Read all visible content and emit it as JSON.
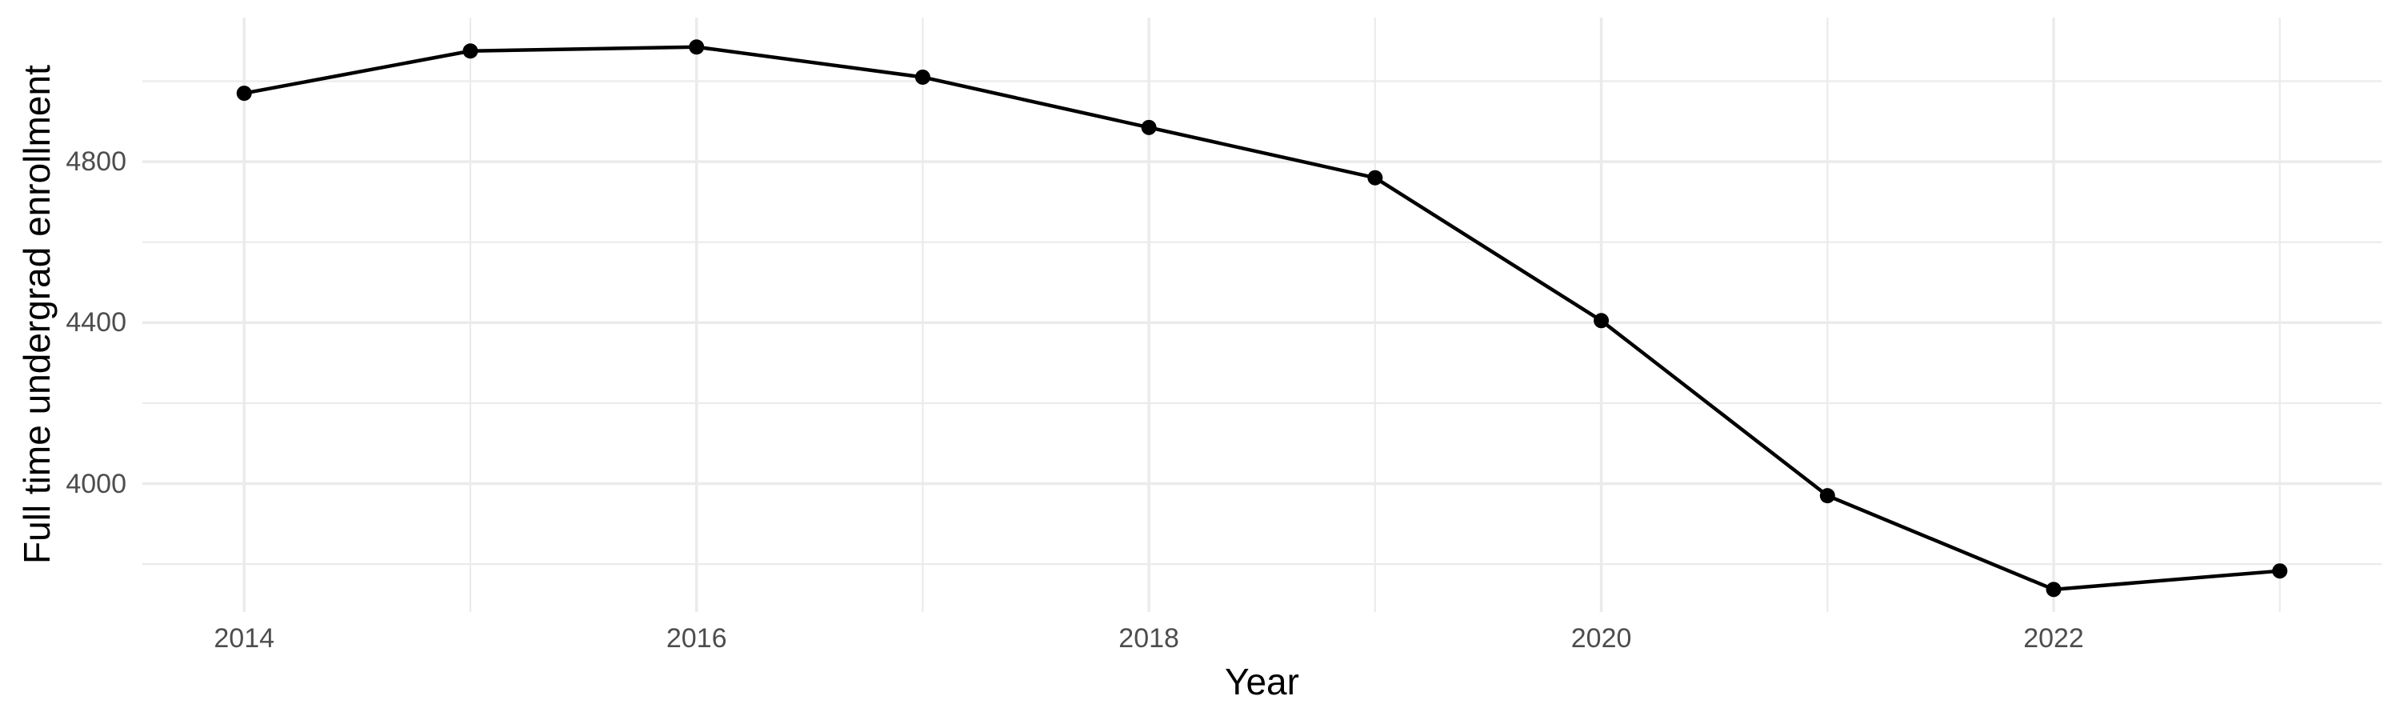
{
  "chart_data": {
    "type": "line",
    "title": "",
    "xlabel": "Year",
    "ylabel": "Full time undergrad enrollment",
    "x": [
      2014,
      2015,
      2016,
      2017,
      2018,
      2019,
      2020,
      2021,
      2022,
      2023
    ],
    "values": [
      4970,
      5075,
      5085,
      5010,
      4885,
      4760,
      4405,
      3970,
      3737,
      3783
    ],
    "series_name": "Full time undergrad enrollment",
    "xlim": [
      2013.55,
      2023.45
    ],
    "ylim": [
      3681,
      5158
    ],
    "x_tick_labels": [
      "2014",
      "2016",
      "2018",
      "2020",
      "2022"
    ],
    "x_major_gridlines": [
      2014,
      2016,
      2018,
      2020,
      2022
    ],
    "x_minor_gridlines": [
      2015,
      2017,
      2019,
      2021,
      2023
    ],
    "y_tick_labels": [
      "4800",
      "4400",
      "4000"
    ],
    "y_major_gridlines": [
      4800,
      4400,
      4000
    ],
    "y_minor_gridlines": [
      5000,
      4600,
      4200,
      3800
    ],
    "grid": "major-and-minor",
    "legend": "none",
    "marker": "filled-circle",
    "colors": {
      "line": "#000000",
      "point": "#000000",
      "gridline": "#EBEBEB",
      "tick_label": "#4D4D4D",
      "axis_title": "#000000",
      "background": "#FFFFFF"
    }
  }
}
